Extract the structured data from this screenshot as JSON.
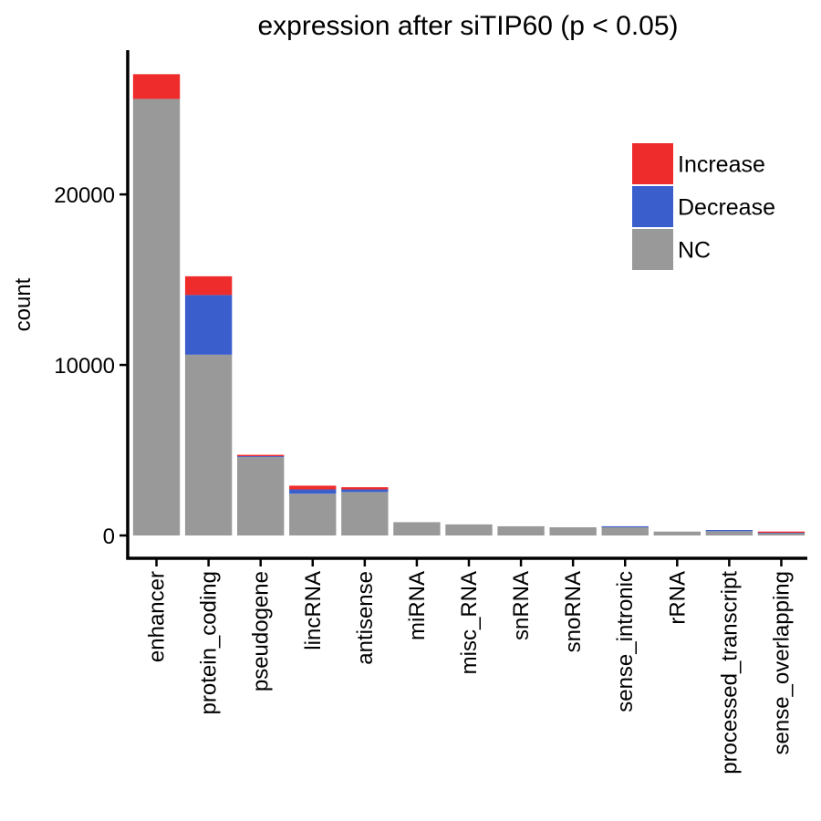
{
  "chart_data": {
    "type": "bar",
    "stacked": true,
    "title": "expression after siTIP60 (p < 0.05)",
    "xlabel": "",
    "ylabel": "count",
    "categories": [
      "enhancer",
      "protein_coding",
      "pseudogene",
      "lincRNA",
      "antisense",
      "miRNA",
      "misc_RNA",
      "snRNA",
      "snoRNA",
      "sense_intronic",
      "rRNA",
      "processed_transcript",
      "sense_overlapping"
    ],
    "series": [
      {
        "name": "NC",
        "color": "#999999",
        "values": [
          25600,
          10600,
          4600,
          2450,
          2550,
          780,
          650,
          540,
          480,
          480,
          230,
          250,
          130
        ]
      },
      {
        "name": "Decrease",
        "color": "#3a5fcd",
        "values": [
          0,
          3500,
          50,
          250,
          150,
          0,
          0,
          0,
          0,
          60,
          0,
          70,
          30
        ]
      },
      {
        "name": "Increase",
        "color": "#ee2c2c",
        "values": [
          1450,
          1100,
          80,
          220,
          130,
          0,
          0,
          0,
          0,
          0,
          0,
          0,
          70
        ]
      }
    ],
    "ylim": [
      0,
      28000
    ],
    "yticks": [
      0,
      10000,
      20000
    ],
    "legend": {
      "position": "top-right",
      "order": [
        "Increase",
        "Decrease",
        "NC"
      ]
    },
    "grid": false
  }
}
